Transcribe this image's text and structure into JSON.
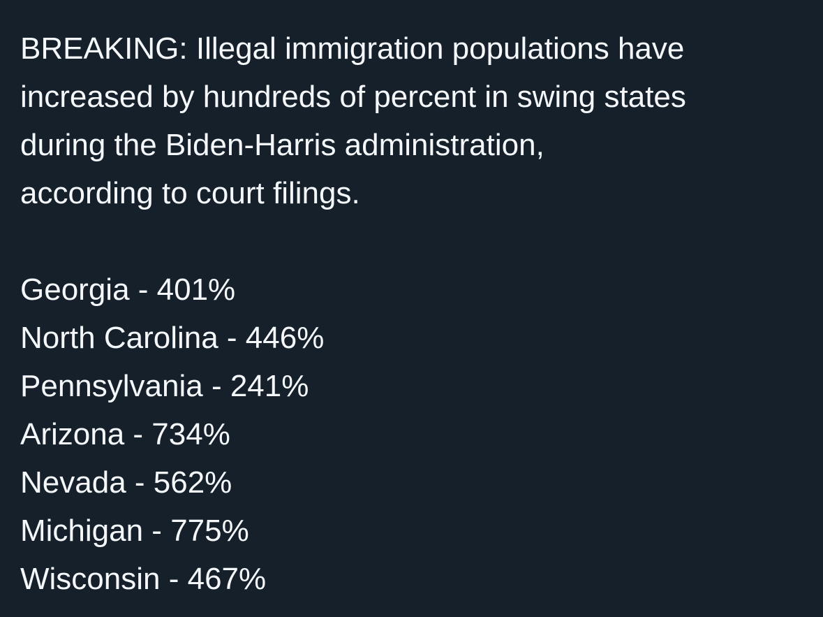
{
  "post": {
    "intro_lines": [
      "BREAKING: Illegal immigration populations have",
      "increased by hundreds of percent in swing states",
      "during the Biden-Harris administration,",
      "according to court filings."
    ],
    "list": [
      "Georgia - 401%",
      "North Carolina - 446%",
      "Pennsylvania - 241%",
      "Arizona - 734%",
      "Nevada - 562%",
      "Michigan - 775%",
      "Wisconsin - 467%"
    ]
  }
}
